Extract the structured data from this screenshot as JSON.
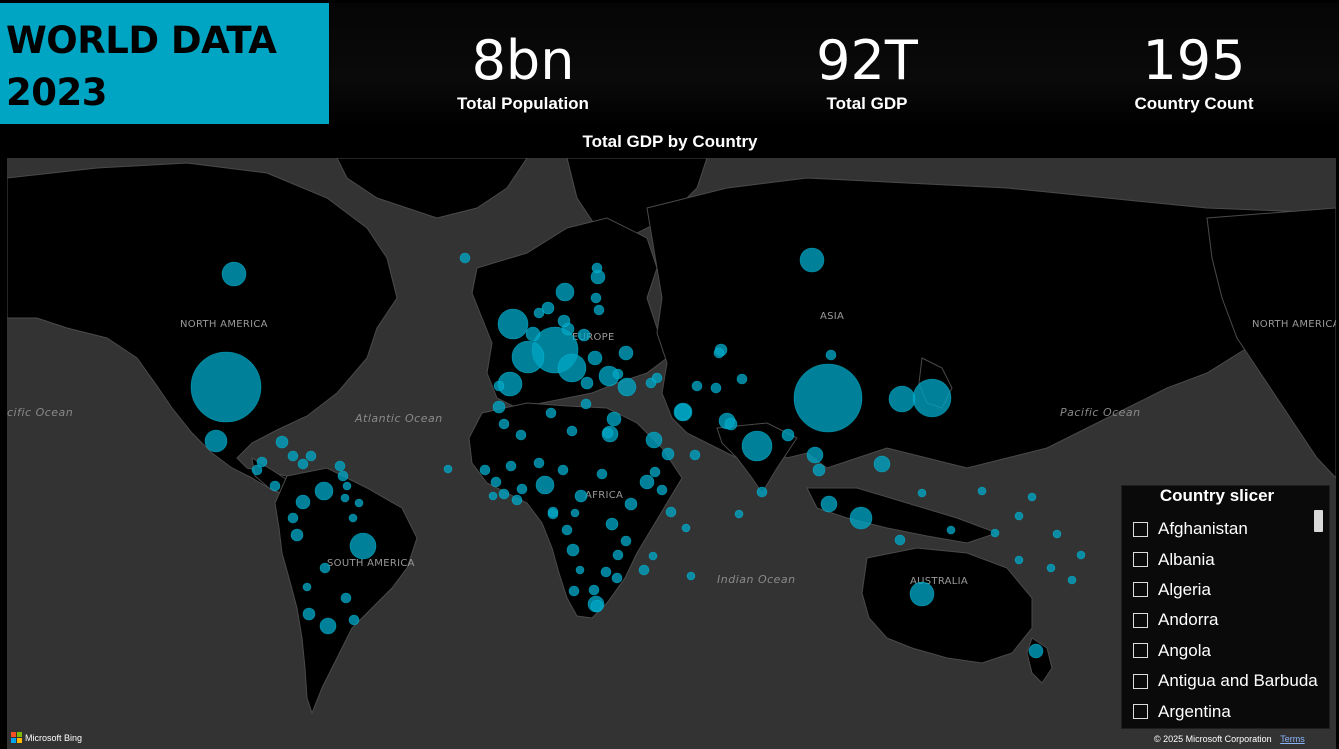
{
  "header": {
    "title": "WORLD DATA\n2023",
    "kpis": [
      {
        "value": "8bn",
        "label": "Total Population"
      },
      {
        "value": "92T",
        "label": "Total GDP"
      },
      {
        "value": "195",
        "label": "Country Count"
      }
    ]
  },
  "map": {
    "title": "Total GDP by Country",
    "ocean_labels": {
      "pacific_left": "cific Ocean",
      "atlantic": "Atlantic Ocean",
      "indian": "Indian Ocean",
      "pacific_right": "Pacific Ocean"
    },
    "region_labels": {
      "north_america": "NORTH AMERICA",
      "north_america_right": "NORTH AMERICA",
      "south_america": "SOUTH AMERICA",
      "europe": "EUROPE",
      "asia": "ASIA",
      "africa": "AFRICA",
      "australia": "AUSTRALIA"
    },
    "bubble_color": "#00a5c4",
    "background_color": "#333333",
    "land_color": "#000000",
    "attribution": {
      "brand": "Microsoft Bing",
      "copyright": "© 2025 Microsoft Corporation",
      "terms": "Terms"
    }
  },
  "slicer": {
    "title": "Country slicer",
    "items": [
      {
        "label": "Afghanistan",
        "checked": false
      },
      {
        "label": "Albania",
        "checked": false
      },
      {
        "label": "Algeria",
        "checked": false
      },
      {
        "label": "Andorra",
        "checked": false
      },
      {
        "label": "Angola",
        "checked": false
      },
      {
        "label": "Antigua and Barbuda",
        "checked": false
      },
      {
        "label": "Argentina",
        "checked": false
      }
    ]
  },
  "colors": {
    "accent": "#00a5c4",
    "title_text": "#000000",
    "background": "#000000"
  }
}
